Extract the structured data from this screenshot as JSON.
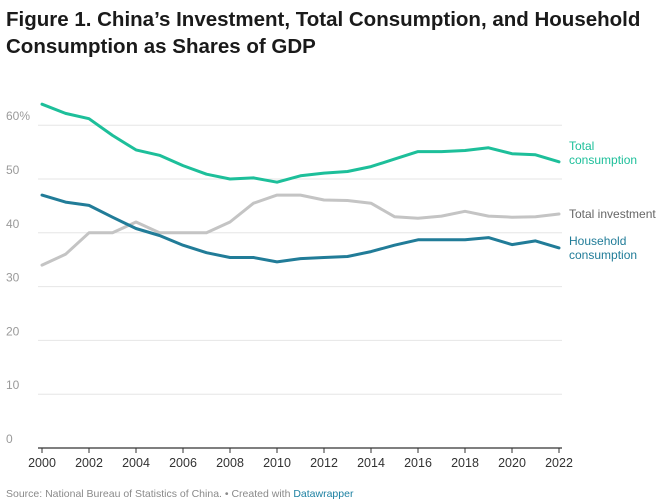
{
  "title": "Figure 1. China’s Investment, Total Consumption, and Household Consumption as Shares of GDP",
  "footer": {
    "source": "Source: National Bureau of Statistics of China. • Created with ",
    "link": "Datawrapper"
  },
  "colors": {
    "total_consumption": "#1dbf9a",
    "total_investment": "#c4c4c4",
    "household_consumption": "#217c98",
    "grid": "#e6e6e6",
    "axis": "#333333"
  },
  "chart_data": {
    "type": "line",
    "title": "Figure 1. China’s Investment, Total Consumption, and Household Consumption as Shares of GDP",
    "xlabel": "",
    "ylabel": "",
    "xlim": [
      2000,
      2022
    ],
    "ylim": [
      0,
      65
    ],
    "yticks": [
      0,
      10,
      20,
      30,
      40,
      50,
      60
    ],
    "ytick_labels": [
      "0",
      "10",
      "20",
      "30",
      "40",
      "50",
      "60%"
    ],
    "xticks": [
      2000,
      2002,
      2004,
      2006,
      2008,
      2010,
      2012,
      2014,
      2016,
      2018,
      2020,
      2022
    ],
    "xtick_labels": [
      "2000",
      "2002",
      "2004",
      "2006",
      "2008",
      "2010",
      "2012",
      "2014",
      "2016",
      "2018",
      "2020",
      "2022"
    ],
    "grid": true,
    "legend": "direct labels at line ends",
    "x": [
      2000,
      2001,
      2002,
      2003,
      2004,
      2005,
      2006,
      2007,
      2008,
      2009,
      2010,
      2011,
      2012,
      2013,
      2014,
      2015,
      2016,
      2017,
      2018,
      2019,
      2020,
      2021,
      2022
    ],
    "series": [
      {
        "key": "total_consumption",
        "label_lines": [
          "Total",
          "consumption"
        ],
        "values": [
          63.9,
          62.2,
          61.2,
          58.1,
          55.4,
          54.4,
          52.5,
          50.9,
          50.0,
          50.2,
          49.4,
          50.6,
          51.1,
          51.4,
          52.3,
          53.7,
          55.1,
          55.1,
          55.3,
          55.8,
          54.7,
          54.5,
          53.2
        ]
      },
      {
        "key": "total_investment",
        "label_lines": [
          "Total investment"
        ],
        "values": [
          34.0,
          36.0,
          40.0,
          40.0,
          42.0,
          40.0,
          40.0,
          40.0,
          42.0,
          45.5,
          47.0,
          47.0,
          46.1,
          46.0,
          45.5,
          43.0,
          42.7,
          43.1,
          44.0,
          43.1,
          42.9,
          43.0,
          43.5
        ]
      },
      {
        "key": "household_consumption",
        "label_lines": [
          "Household",
          "consumption"
        ],
        "values": [
          47.0,
          45.7,
          45.1,
          42.9,
          40.8,
          39.5,
          37.7,
          36.3,
          35.4,
          35.4,
          34.6,
          35.2,
          35.4,
          35.6,
          36.5,
          37.7,
          38.7,
          38.7,
          38.7,
          39.1,
          37.8,
          38.5,
          37.2
        ]
      }
    ]
  }
}
